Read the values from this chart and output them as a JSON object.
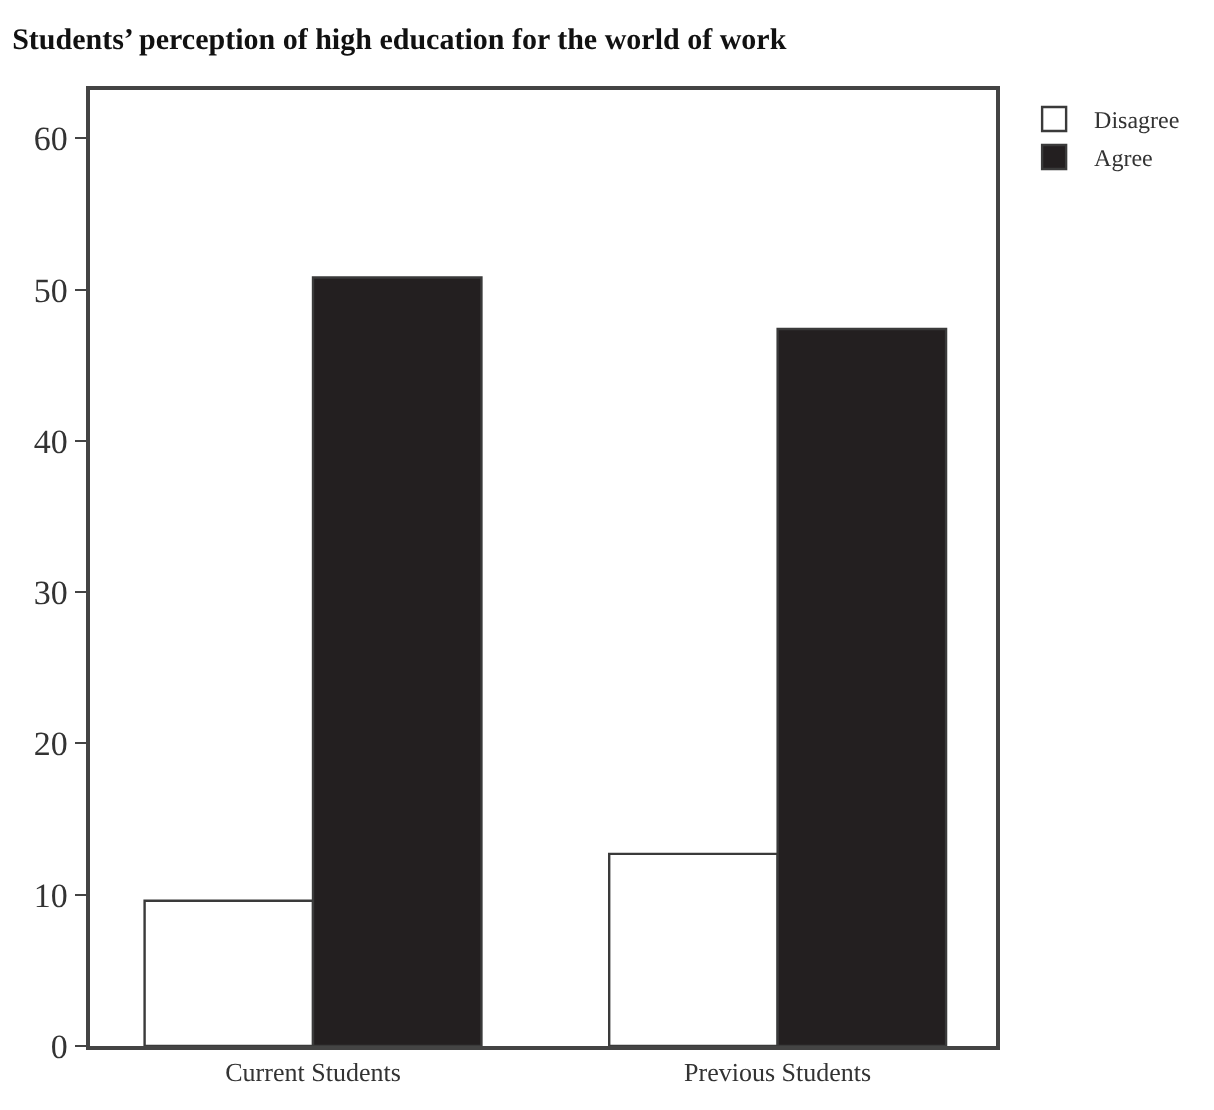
{
  "chart_data": {
    "type": "bar",
    "title": "Students’ perception of high education for the world of work",
    "categories": [
      "Current Students",
      "Previous Students"
    ],
    "series": [
      {
        "name": "Disagree",
        "color": "#ffffff",
        "values": [
          9.6,
          12.7
        ]
      },
      {
        "name": "Agree",
        "color": "#231f20",
        "values": [
          50.8,
          47.4
        ]
      }
    ],
    "ylim": [
      0,
      63.2
    ],
    "yticks": [
      0,
      10,
      20,
      30,
      40,
      50,
      60
    ],
    "legend": "top right"
  }
}
